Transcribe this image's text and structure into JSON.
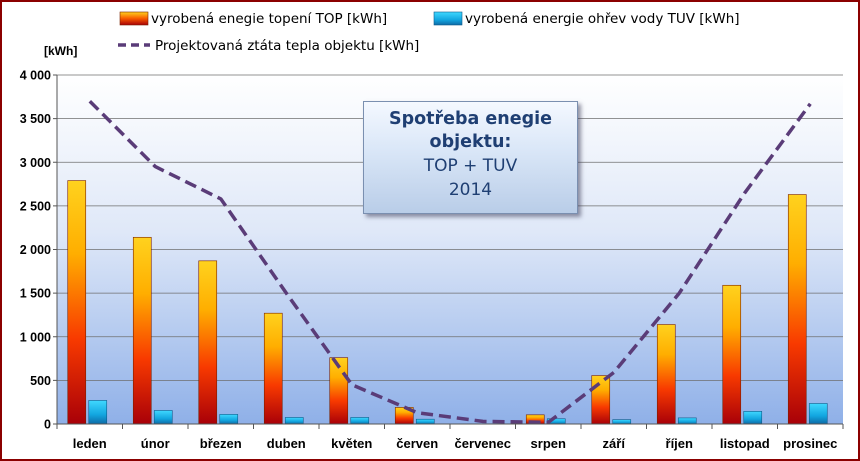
{
  "chart_data": {
    "type": "bar",
    "unit_label": "[kWh]",
    "title_lines": [
      "Spotřeba enegie",
      "objektu:",
      "TOP + TUV",
      "2014"
    ],
    "categories": [
      "leden",
      "únor",
      "březen",
      "duben",
      "květen",
      "červen",
      "červenec",
      "srpen",
      "září",
      "říjen",
      "listopad",
      "prosinec"
    ],
    "series": [
      {
        "name": "vyrobená enegie topení TOP [kWh]",
        "kind": "bar",
        "color": "#e8c000",
        "values": [
          2790,
          2140,
          1870,
          1270,
          760,
          190,
          0,
          105,
          555,
          1140,
          1590,
          2630
        ]
      },
      {
        "name": "vyrobená energie ohřev vody TUV [kWh]",
        "kind": "bar",
        "color": "#19b4ea",
        "values": [
          270,
          155,
          110,
          75,
          75,
          55,
          0,
          60,
          50,
          70,
          145,
          235
        ]
      },
      {
        "name": "Projektovaná ztáta tepla objektu [kWh]",
        "kind": "line",
        "color": "#5a3c78",
        "values": [
          3700,
          2950,
          2580,
          1500,
          450,
          130,
          30,
          20,
          590,
          1500,
          2650,
          3670
        ]
      }
    ],
    "ylim": [
      0,
      4000
    ],
    "yticks": [
      "0",
      "500",
      "1 000",
      "1 500",
      "2 000",
      "2 500",
      "3 000",
      "3 500",
      "4 000"
    ],
    "ytick_values": [
      0,
      500,
      1000,
      1500,
      2000,
      2500,
      3000,
      3500,
      4000
    ],
    "grid": true,
    "legend_position": "top"
  }
}
